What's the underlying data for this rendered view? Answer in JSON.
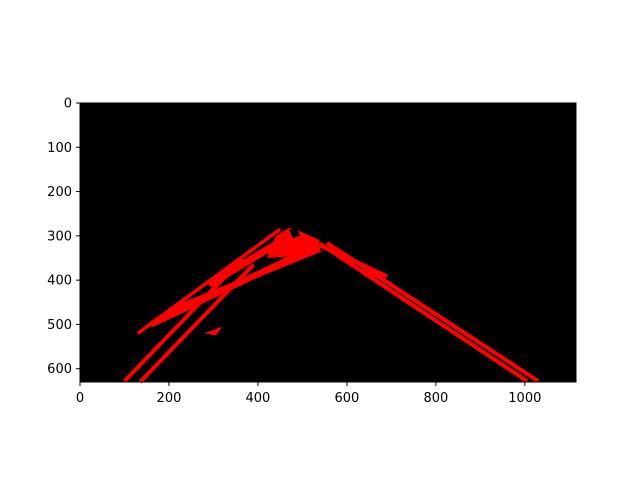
{
  "chart_data": {
    "type": "image",
    "title": "",
    "xlabel": "",
    "ylabel": "",
    "xlim": [
      0,
      1115
    ],
    "ylim": [
      630,
      0
    ],
    "x_ticks": [
      0,
      200,
      400,
      600,
      800,
      1000
    ],
    "y_ticks": [
      0,
      100,
      200,
      300,
      400,
      500,
      600
    ],
    "background": "#000000",
    "mark_color": "#ff0000",
    "description": "Binary-style lane detection mask: red line segments on black image",
    "lane_segments": [
      {
        "name": "left-outer-line",
        "points": [
          [
            100,
            628
          ],
          [
            365,
            352
          ]
        ],
        "width": 9
      },
      {
        "name": "left-inner-line",
        "points": [
          [
            135,
            630
          ],
          [
            390,
            365
          ]
        ],
        "width": 9
      },
      {
        "name": "left-upper-band-a",
        "points": [
          [
            130,
            520
          ],
          [
            450,
            285
          ]
        ],
        "width": 8
      },
      {
        "name": "left-upper-band-b",
        "points": [
          [
            160,
            500
          ],
          [
            540,
            320
          ]
        ],
        "width": 14
      },
      {
        "name": "left-upper-band-c",
        "points": [
          [
            200,
            470
          ],
          [
            540,
            330
          ]
        ],
        "width": 12
      },
      {
        "name": "left-upper-band-d",
        "points": [
          [
            290,
            410
          ],
          [
            480,
            295
          ]
        ],
        "width": 16
      },
      {
        "name": "right-inner-line",
        "points": [
          [
            540,
            318
          ],
          [
            1005,
            628
          ]
        ],
        "width": 9
      },
      {
        "name": "right-outer-line",
        "points": [
          [
            555,
            316
          ],
          [
            1030,
            628
          ]
        ],
        "width": 9
      },
      {
        "name": "right-upper-segment",
        "points": [
          [
            520,
            312
          ],
          [
            690,
            392
          ]
        ],
        "width": 10
      }
    ],
    "lane_blobs": [
      {
        "name": "apex-blob",
        "points": [
          [
            440,
            300
          ],
          [
            470,
            282
          ],
          [
            490,
            288
          ],
          [
            540,
            310
          ],
          [
            500,
            345
          ],
          [
            420,
            350
          ]
        ]
      },
      {
        "name": "right-fragment-blob",
        "points": [
          [
            630,
            378
          ],
          [
            690,
            386
          ],
          [
            680,
            396
          ],
          [
            640,
            392
          ]
        ]
      },
      {
        "name": "left-lower-fragment-blob",
        "points": [
          [
            280,
            520
          ],
          [
            320,
            505
          ],
          [
            305,
            525
          ]
        ]
      }
    ],
    "holes": [
      {
        "name": "apex-hole",
        "points": [
          [
            470,
            286
          ],
          [
            488,
            284
          ],
          [
            495,
            300
          ],
          [
            478,
            305
          ]
        ]
      }
    ]
  }
}
